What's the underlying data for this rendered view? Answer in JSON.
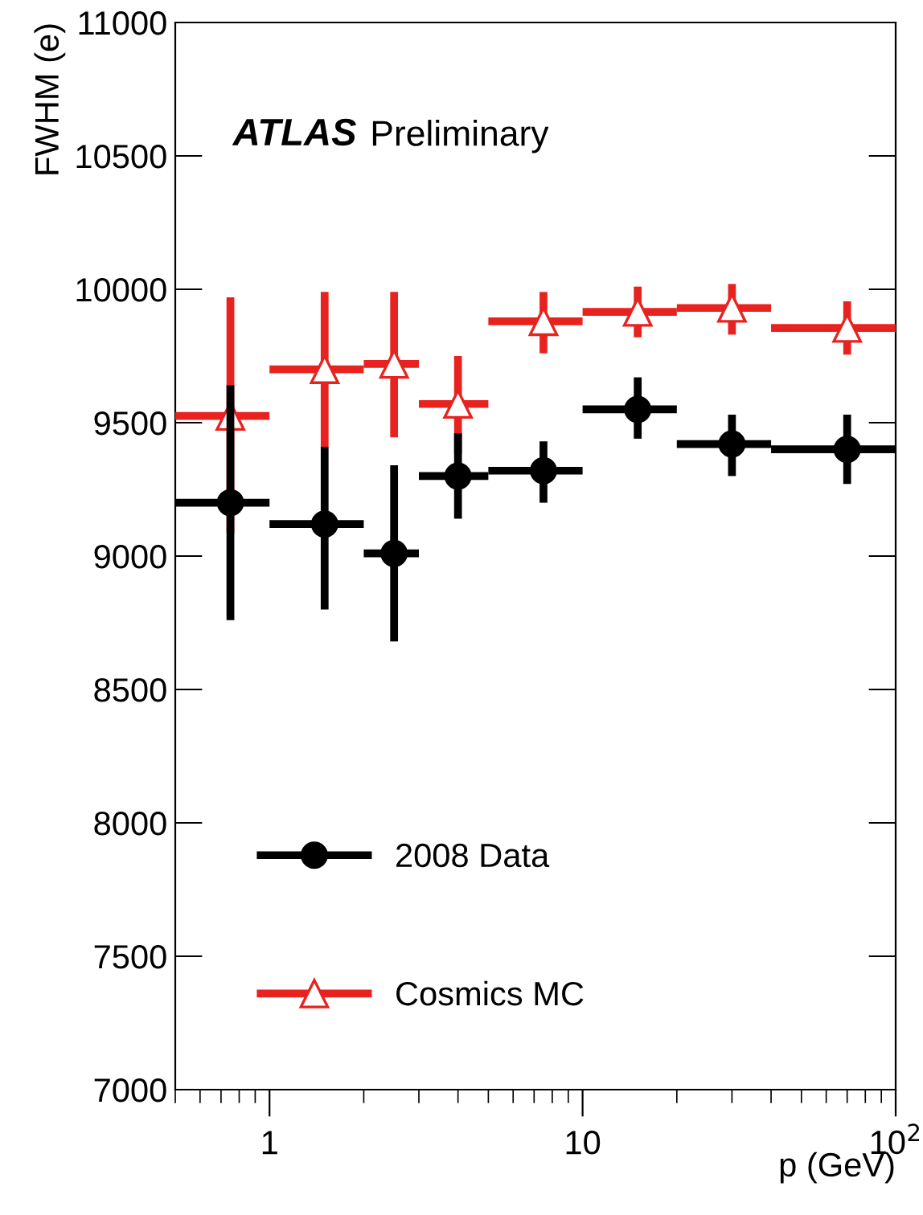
{
  "chart_data": {
    "type": "scatter",
    "ylabel": "FWHM (e)",
    "xlabel": "p (GeV)",
    "annotations": [
      "ATLAS",
      "Preliminary"
    ],
    "x": [
      0.75,
      1.5,
      2.5,
      4,
      7.5,
      15,
      30,
      70
    ],
    "series": [
      {
        "name": "2008 Data",
        "color": "#000000",
        "marker": "circle",
        "values": [
          9200,
          9120,
          9010,
          9300,
          9320,
          9550,
          9420,
          9400
        ],
        "errors": [
          [
            8760,
            9640
          ],
          [
            8800,
            9410
          ],
          [
            8680,
            9340
          ],
          [
            9140,
            9460
          ],
          [
            9200,
            9430
          ],
          [
            9440,
            9670
          ],
          [
            9300,
            9530
          ],
          [
            9270,
            9530
          ]
        ],
        "xerrors": [
          [
            0.5,
            1
          ],
          [
            1,
            2
          ],
          [
            2,
            3
          ],
          [
            3,
            5
          ],
          [
            5,
            10
          ],
          [
            10,
            20
          ],
          [
            20,
            40
          ],
          [
            40,
            100
          ]
        ]
      },
      {
        "name": "Cosmics MC",
        "color": "#e8231f",
        "marker": "triangle",
        "values": [
          9525,
          9700,
          9720,
          9570,
          9880,
          9915,
          9930,
          9855
        ],
        "errors": [
          [
            9085,
            9970
          ],
          [
            9410,
            9990
          ],
          [
            9445,
            9990
          ],
          [
            9385,
            9750
          ],
          [
            9760,
            9990
          ],
          [
            9820,
            10010
          ],
          [
            9830,
            10020
          ],
          [
            9755,
            9955
          ]
        ],
        "xerrors": [
          [
            0.5,
            1
          ],
          [
            1,
            2
          ],
          [
            2,
            3
          ],
          [
            3,
            5
          ],
          [
            5,
            10
          ],
          [
            10,
            20
          ],
          [
            20,
            40
          ],
          [
            40,
            100
          ]
        ]
      }
    ],
    "log": "x",
    "xlim": [
      0.5,
      100
    ],
    "xticks": [
      1,
      10,
      {
        "value": 100,
        "label": "10$^{2}$"
      }
    ],
    "ylim": [
      7000,
      11000
    ],
    "yticks": [
      7000,
      7500,
      8000,
      8500,
      9000,
      9500,
      10000,
      10500,
      11000
    ],
    "grid": false,
    "legend": "bottom left"
  }
}
